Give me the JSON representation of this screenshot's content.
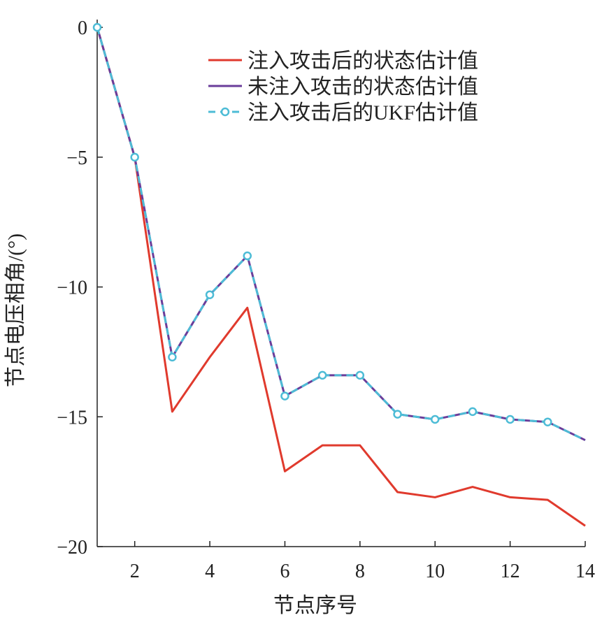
{
  "chart_data": {
    "type": "line",
    "title": "",
    "xlabel": "节点序号",
    "ylabel": "节点电压相角/(°)",
    "xlim": [
      1,
      14
    ],
    "ylim": [
      -20,
      0.3
    ],
    "xticks": [
      2,
      4,
      6,
      8,
      10,
      12,
      14
    ],
    "yticks": [
      0,
      -5,
      -10,
      -15,
      -20
    ],
    "xtick_labels": [
      "2",
      "4",
      "6",
      "8",
      "10",
      "12",
      "14"
    ],
    "ytick_labels": [
      "0",
      "−5",
      "−10",
      "−15",
      "−20"
    ],
    "legend_position": "top-right",
    "x": [
      1,
      2,
      3,
      4,
      5,
      6,
      7,
      8,
      9,
      10,
      11,
      12,
      13,
      14
    ],
    "series": [
      {
        "name": "注入攻击后的状态估计值",
        "color": "#e03a2d",
        "style": "solid",
        "marker": "none",
        "values": [
          0,
          -5.0,
          -14.8,
          -12.7,
          -10.8,
          -17.1,
          -16.1,
          -16.1,
          -17.9,
          -18.1,
          -17.7,
          -18.1,
          -18.2,
          -19.2
        ]
      },
      {
        "name": "未注入攻击的状态估计值",
        "color": "#6a3d9a",
        "style": "solid",
        "marker": "none",
        "values": [
          0,
          -5.0,
          -12.7,
          -10.3,
          -8.8,
          -14.2,
          -13.4,
          -13.4,
          -14.9,
          -15.1,
          -14.8,
          -15.1,
          -15.2,
          -15.9
        ]
      },
      {
        "name": "注入攻击后的UKF估计值",
        "color": "#4dbcd6",
        "style": "dashed",
        "marker": "circle",
        "values": [
          0,
          -5.0,
          -12.7,
          -10.3,
          -8.8,
          -14.2,
          -13.4,
          -13.4,
          -14.9,
          -15.1,
          -14.8,
          -15.1,
          -15.2,
          -15.9
        ]
      }
    ]
  }
}
